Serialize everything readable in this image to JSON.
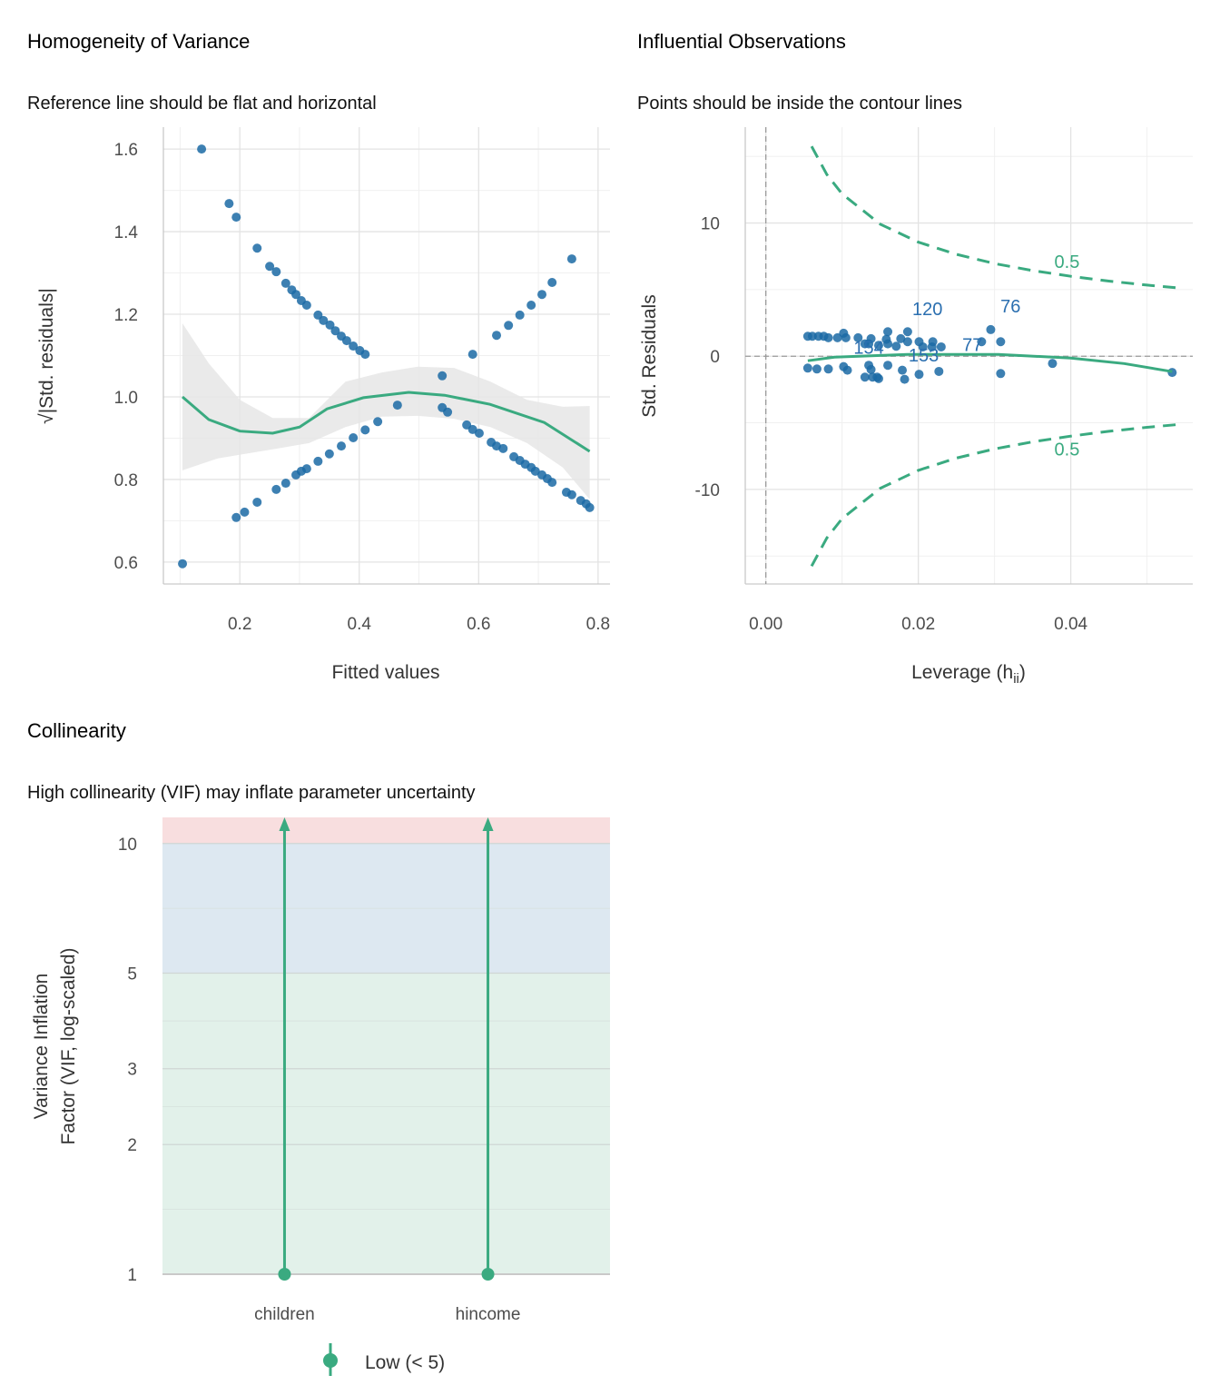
{
  "colors": {
    "points": "#1b6aa5",
    "line": "#3aaa80",
    "ci_band": "#e6e6e6",
    "label": "#2b6fb0",
    "low_band": "#e2f1ea",
    "moderate_band": "#dde8f1",
    "high_band": "#f8dedf"
  },
  "chart_data": [
    {
      "type": "scatter",
      "title": "Homogeneity of Variance",
      "subtitle": "Reference line should be flat and horizontal",
      "xlabel": "Fitted values",
      "ylabel": "√|Std. residuals|",
      "xlim": [
        0.072,
        0.82
      ],
      "ylim": [
        0.547,
        1.653
      ],
      "xticks": [
        0.2,
        0.4,
        0.6,
        0.8
      ],
      "xtick_labels": [
        "0.2",
        "0.4",
        "0.6",
        "0.8"
      ],
      "yticks": [
        0.6,
        0.8,
        1.0,
        1.2,
        1.4,
        1.6
      ],
      "ytick_labels": [
        "0.6",
        "0.8",
        "1.0",
        "1.2",
        "1.4",
        "1.6"
      ],
      "grid": true,
      "points": [
        [
          0.136,
          1.6
        ],
        [
          0.182,
          1.468
        ],
        [
          0.194,
          1.435
        ],
        [
          0.229,
          1.36
        ],
        [
          0.25,
          1.316
        ],
        [
          0.261,
          1.303
        ],
        [
          0.277,
          1.275
        ],
        [
          0.287,
          1.259
        ],
        [
          0.294,
          1.248
        ],
        [
          0.303,
          1.233
        ],
        [
          0.312,
          1.222
        ],
        [
          0.331,
          1.198
        ],
        [
          0.34,
          1.185
        ],
        [
          0.351,
          1.174
        ],
        [
          0.36,
          1.16
        ],
        [
          0.37,
          1.147
        ],
        [
          0.379,
          1.136
        ],
        [
          0.39,
          1.123
        ],
        [
          0.401,
          1.112
        ],
        [
          0.41,
          1.103
        ],
        [
          0.104,
          0.596
        ],
        [
          0.194,
          0.708
        ],
        [
          0.208,
          0.721
        ],
        [
          0.229,
          0.745
        ],
        [
          0.261,
          0.776
        ],
        [
          0.277,
          0.791
        ],
        [
          0.294,
          0.811
        ],
        [
          0.303,
          0.82
        ],
        [
          0.312,
          0.826
        ],
        [
          0.331,
          0.844
        ],
        [
          0.35,
          0.862
        ],
        [
          0.37,
          0.881
        ],
        [
          0.39,
          0.901
        ],
        [
          0.41,
          0.92
        ],
        [
          0.431,
          0.94
        ],
        [
          0.464,
          0.98
        ],
        [
          0.59,
          1.103
        ],
        [
          0.63,
          1.149
        ],
        [
          0.65,
          1.173
        ],
        [
          0.669,
          1.198
        ],
        [
          0.688,
          1.222
        ],
        [
          0.706,
          1.248
        ],
        [
          0.723,
          1.277
        ],
        [
          0.756,
          1.334
        ],
        [
          0.539,
          1.051
        ],
        [
          0.539,
          0.974
        ],
        [
          0.548,
          0.963
        ],
        [
          0.58,
          0.932
        ],
        [
          0.59,
          0.921
        ],
        [
          0.601,
          0.912
        ],
        [
          0.621,
          0.89
        ],
        [
          0.63,
          0.881
        ],
        [
          0.641,
          0.875
        ],
        [
          0.659,
          0.855
        ],
        [
          0.669,
          0.846
        ],
        [
          0.678,
          0.837
        ],
        [
          0.688,
          0.829
        ],
        [
          0.695,
          0.82
        ],
        [
          0.706,
          0.811
        ],
        [
          0.715,
          0.802
        ],
        [
          0.723,
          0.793
        ],
        [
          0.747,
          0.769
        ],
        [
          0.756,
          0.763
        ],
        [
          0.771,
          0.749
        ],
        [
          0.78,
          0.741
        ],
        [
          0.786,
          0.732
        ]
      ],
      "smooth": [
        [
          0.104,
          1.0
        ],
        [
          0.148,
          0.945
        ],
        [
          0.2,
          0.917
        ],
        [
          0.255,
          0.912
        ],
        [
          0.3,
          0.927
        ],
        [
          0.346,
          0.971
        ],
        [
          0.407,
          0.998
        ],
        [
          0.483,
          1.011
        ],
        [
          0.543,
          1.004
        ],
        [
          0.619,
          0.982
        ],
        [
          0.71,
          0.938
        ],
        [
          0.786,
          0.868
        ]
      ],
      "ci_upper": [
        [
          0.104,
          1.178
        ],
        [
          0.148,
          1.081
        ],
        [
          0.2,
          0.993
        ],
        [
          0.255,
          0.949
        ],
        [
          0.316,
          0.949
        ],
        [
          0.377,
          1.037
        ],
        [
          0.438,
          1.059
        ],
        [
          0.498,
          1.073
        ],
        [
          0.559,
          1.07
        ],
        [
          0.62,
          1.037
        ],
        [
          0.681,
          0.993
        ],
        [
          0.741,
          0.976
        ],
        [
          0.786,
          0.978
        ]
      ],
      "ci_lower": [
        [
          0.104,
          0.822
        ],
        [
          0.163,
          0.851
        ],
        [
          0.255,
          0.873
        ],
        [
          0.316,
          0.888
        ],
        [
          0.377,
          0.927
        ],
        [
          0.438,
          0.952
        ],
        [
          0.498,
          0.954
        ],
        [
          0.559,
          0.947
        ],
        [
          0.62,
          0.927
        ],
        [
          0.681,
          0.888
        ],
        [
          0.741,
          0.829
        ],
        [
          0.786,
          0.752
        ]
      ]
    },
    {
      "type": "scatter",
      "title": "Influential Observations",
      "subtitle": "Points should be inside the contour lines",
      "xlabel_main": "Leverage (h",
      "xlabel_sub": "ii",
      "xlabel_end": ")",
      "ylabel": "Std. Residuals",
      "xlim": [
        -0.0027,
        0.056
      ],
      "ylim": [
        -17.1,
        17.2
      ],
      "xticks": [
        0.0,
        0.02,
        0.04
      ],
      "xtick_labels": [
        "0.00",
        "0.02",
        "0.04"
      ],
      "yticks": [
        -10,
        0,
        10
      ],
      "ytick_labels": [
        "-10",
        "0",
        "10"
      ],
      "grid": true,
      "points": [
        [
          0.0055,
          1.5
        ],
        [
          0.0061,
          1.5
        ],
        [
          0.0069,
          1.5
        ],
        [
          0.0076,
          1.5
        ],
        [
          0.0082,
          1.39
        ],
        [
          0.0094,
          1.39
        ],
        [
          0.0102,
          1.73
        ],
        [
          0.0105,
          1.39
        ],
        [
          0.0121,
          1.39
        ],
        [
          0.013,
          0.93
        ],
        [
          0.0138,
          1.32
        ],
        [
          0.0135,
          0.93
        ],
        [
          0.0148,
          0.82
        ],
        [
          0.0158,
          1.27
        ],
        [
          0.016,
          1.84
        ],
        [
          0.016,
          0.93
        ],
        [
          0.0171,
          0.75
        ],
        [
          0.0177,
          1.32
        ],
        [
          0.0186,
          1.84
        ],
        [
          0.0186,
          1.09
        ],
        [
          0.0201,
          1.09
        ],
        [
          0.0206,
          0.7
        ],
        [
          0.0218,
          0.7
        ],
        [
          0.0219,
          1.09
        ],
        [
          0.023,
          0.7
        ],
        [
          0.0283,
          1.09
        ],
        [
          0.0295,
          2.0
        ],
        [
          0.0308,
          1.09
        ],
        [
          0.0055,
          -0.89
        ],
        [
          0.0067,
          -0.96
        ],
        [
          0.0082,
          -0.96
        ],
        [
          0.0102,
          -0.78
        ],
        [
          0.0107,
          -1.05
        ],
        [
          0.013,
          -1.57
        ],
        [
          0.0135,
          -0.68
        ],
        [
          0.0138,
          -1.0
        ],
        [
          0.014,
          -1.57
        ],
        [
          0.0146,
          -1.57
        ],
        [
          0.0148,
          -1.68
        ],
        [
          0.016,
          -0.68
        ],
        [
          0.0179,
          -1.05
        ],
        [
          0.0182,
          -1.73
        ],
        [
          0.0201,
          -1.36
        ],
        [
          0.0227,
          -1.14
        ],
        [
          0.0308,
          -1.3
        ],
        [
          0.0376,
          -0.54
        ],
        [
          0.0533,
          -1.22
        ]
      ],
      "point_labels": [
        {
          "text": "120",
          "x": 0.0212,
          "y": 3.1
        },
        {
          "text": "76",
          "x": 0.0321,
          "y": 3.3
        },
        {
          "text": "77",
          "x": 0.0271,
          "y": 0.4
        },
        {
          "text": "154",
          "x": 0.0135,
          "y": 0.2
        },
        {
          "text": "153",
          "x": 0.0207,
          "y": -0.4
        }
      ],
      "smooth": [
        [
          0.0055,
          -0.34
        ],
        [
          0.009,
          -0.07
        ],
        [
          0.0186,
          0.14
        ],
        [
          0.0305,
          0.14
        ],
        [
          0.04,
          -0.14
        ],
        [
          0.047,
          -0.55
        ],
        [
          0.0533,
          -1.16
        ]
      ],
      "contour_label": "0.5",
      "contour_upper": [
        [
          0.006,
          15.76
        ],
        [
          0.008,
          13.64
        ],
        [
          0.01,
          12.19
        ],
        [
          0.015,
          9.92
        ],
        [
          0.02,
          8.57
        ],
        [
          0.025,
          7.65
        ],
        [
          0.03,
          6.96
        ],
        [
          0.035,
          6.43
        ],
        [
          0.04,
          6.0
        ],
        [
          0.045,
          5.64
        ],
        [
          0.05,
          5.34
        ],
        [
          0.054,
          5.13
        ]
      ],
      "contour_lower": [
        [
          0.006,
          -15.76
        ],
        [
          0.008,
          -13.64
        ],
        [
          0.01,
          -12.19
        ],
        [
          0.015,
          -9.92
        ],
        [
          0.02,
          -8.57
        ],
        [
          0.025,
          -7.65
        ],
        [
          0.03,
          -6.96
        ],
        [
          0.035,
          -6.43
        ],
        [
          0.04,
          -6.0
        ],
        [
          0.045,
          -5.64
        ],
        [
          0.05,
          -5.34
        ],
        [
          0.054,
          -5.13
        ]
      ],
      "reference_lines": {
        "x": 0,
        "y": 0
      }
    },
    {
      "type": "bar",
      "title": "Collinearity",
      "subtitle": "High collinearity (VIF) may inflate parameter uncertainty",
      "xlabel": "",
      "ylabel_line1": "Variance Inflation",
      "ylabel_line2": "Factor (VIF, log-scaled)",
      "yscale": "log",
      "ylim": [
        1,
        11.5
      ],
      "yticks": [
        1,
        2,
        3,
        5,
        10
      ],
      "ytick_labels": [
        "1",
        "2",
        "3",
        "5",
        "10"
      ],
      "categories": [
        "children",
        "hincome"
      ],
      "values": [
        1.0,
        1.0
      ],
      "ci_upper": [
        "off-scale",
        "off-scale"
      ],
      "bands": [
        {
          "from": 1,
          "to": 5,
          "level": "low"
        },
        {
          "from": 5,
          "to": 10,
          "level": "moderate"
        },
        {
          "from": 10,
          "to": 11.5,
          "level": "high"
        }
      ],
      "legend": {
        "placement": "bottom",
        "entries": [
          "Low (< 5)"
        ]
      }
    }
  ]
}
